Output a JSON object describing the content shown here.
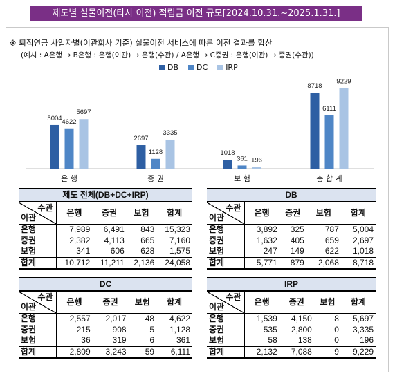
{
  "banner": "제도별 실물이전(타사 이전) 적립금 이전 규모[2024.10.31.~2025.1.31.]",
  "note_line1": "※  퇴직연금 사업자별(이관회사 기준) 실물이전 서비스에 따른 이전 결과를 합산",
  "note_line2": "(예시 : A은행 → B은행 : 은행(이관) → 은행(수관) / A은행 → C증권 : 은행(이관) → 증권(수관))",
  "colors": {
    "DB": "#2e5fa3",
    "DC": "#4f86c6",
    "IRP": "#a9c4e4",
    "banner": "#7a2f86",
    "table_header": "#dbe3f0"
  },
  "chart_data": {
    "type": "bar",
    "categories": [
      "은 행",
      "증 권",
      "보 험",
      "총  합 계"
    ],
    "series": [
      {
        "name": "DB",
        "values": [
          5004,
          2697,
          1018,
          8718
        ]
      },
      {
        "name": "DC",
        "values": [
          4622,
          1128,
          361,
          6111
        ]
      },
      {
        "name": "IRP",
        "values": [
          5697,
          3335,
          196,
          9229
        ]
      }
    ],
    "data_labels": [
      [
        "5004",
        "2697",
        "1018",
        "8718"
      ],
      [
        "4622",
        "1128",
        "361",
        "6111"
      ],
      [
        "5697",
        "3335",
        "196",
        "9229"
      ]
    ],
    "ylim": [
      0,
      10000
    ],
    "grid": false,
    "legend_position": "top-center",
    "xlabel": "",
    "ylabel": ""
  },
  "tables": [
    {
      "caption": "제도 전체(DB+DC+IRP)",
      "corner_top": "수관",
      "corner_bottom": "이관",
      "columns": [
        "은행",
        "증권",
        "보험",
        "합계"
      ],
      "rows": [
        {
          "label": "은행",
          "cells": [
            "7,989",
            "6,491",
            "843",
            "15,323"
          ]
        },
        {
          "label": "증권",
          "cells": [
            "2,382",
            "4,113",
            "665",
            "7,160"
          ]
        },
        {
          "label": "보험",
          "cells": [
            "341",
            "606",
            "628",
            "1,575"
          ]
        },
        {
          "label": "합계",
          "cells": [
            "10,712",
            "11,211",
            "2,136",
            "24,058"
          ]
        }
      ]
    },
    {
      "caption": "DB",
      "corner_top": "수관",
      "corner_bottom": "이관",
      "columns": [
        "은행",
        "증권",
        "보험",
        "합계"
      ],
      "rows": [
        {
          "label": "은행",
          "cells": [
            "3,892",
            "325",
            "787",
            "5,004"
          ]
        },
        {
          "label": "증권",
          "cells": [
            "1,632",
            "405",
            "659",
            "2,697"
          ]
        },
        {
          "label": "보험",
          "cells": [
            "247",
            "149",
            "622",
            "1,018"
          ]
        },
        {
          "label": "합계",
          "cells": [
            "5,771",
            "879",
            "2,068",
            "8,718"
          ]
        }
      ]
    },
    {
      "caption": "DC",
      "corner_top": "수관",
      "corner_bottom": "이관",
      "columns": [
        "은행",
        "증권",
        "보험",
        "합계"
      ],
      "rows": [
        {
          "label": "은행",
          "cells": [
            "2,557",
            "2,017",
            "48",
            "4,622"
          ]
        },
        {
          "label": "증권",
          "cells": [
            "215",
            "908",
            "5",
            "1,128"
          ]
        },
        {
          "label": "보험",
          "cells": [
            "36",
            "319",
            "6",
            "361"
          ]
        },
        {
          "label": "합계",
          "cells": [
            "2,809",
            "3,243",
            "59",
            "6,111"
          ]
        }
      ]
    },
    {
      "caption": "IRP",
      "corner_top": "수관",
      "corner_bottom": "이관",
      "columns": [
        "은행",
        "증권",
        "보험",
        "합계"
      ],
      "rows": [
        {
          "label": "은행",
          "cells": [
            "1,539",
            "4,150",
            "8",
            "5,697"
          ]
        },
        {
          "label": "증권",
          "cells": [
            "535",
            "2,800",
            "0",
            "3,335"
          ]
        },
        {
          "label": "보험",
          "cells": [
            "58",
            "138",
            "0",
            "196"
          ]
        },
        {
          "label": "합계",
          "cells": [
            "2,132",
            "7,088",
            "9",
            "9,229"
          ]
        }
      ]
    }
  ]
}
